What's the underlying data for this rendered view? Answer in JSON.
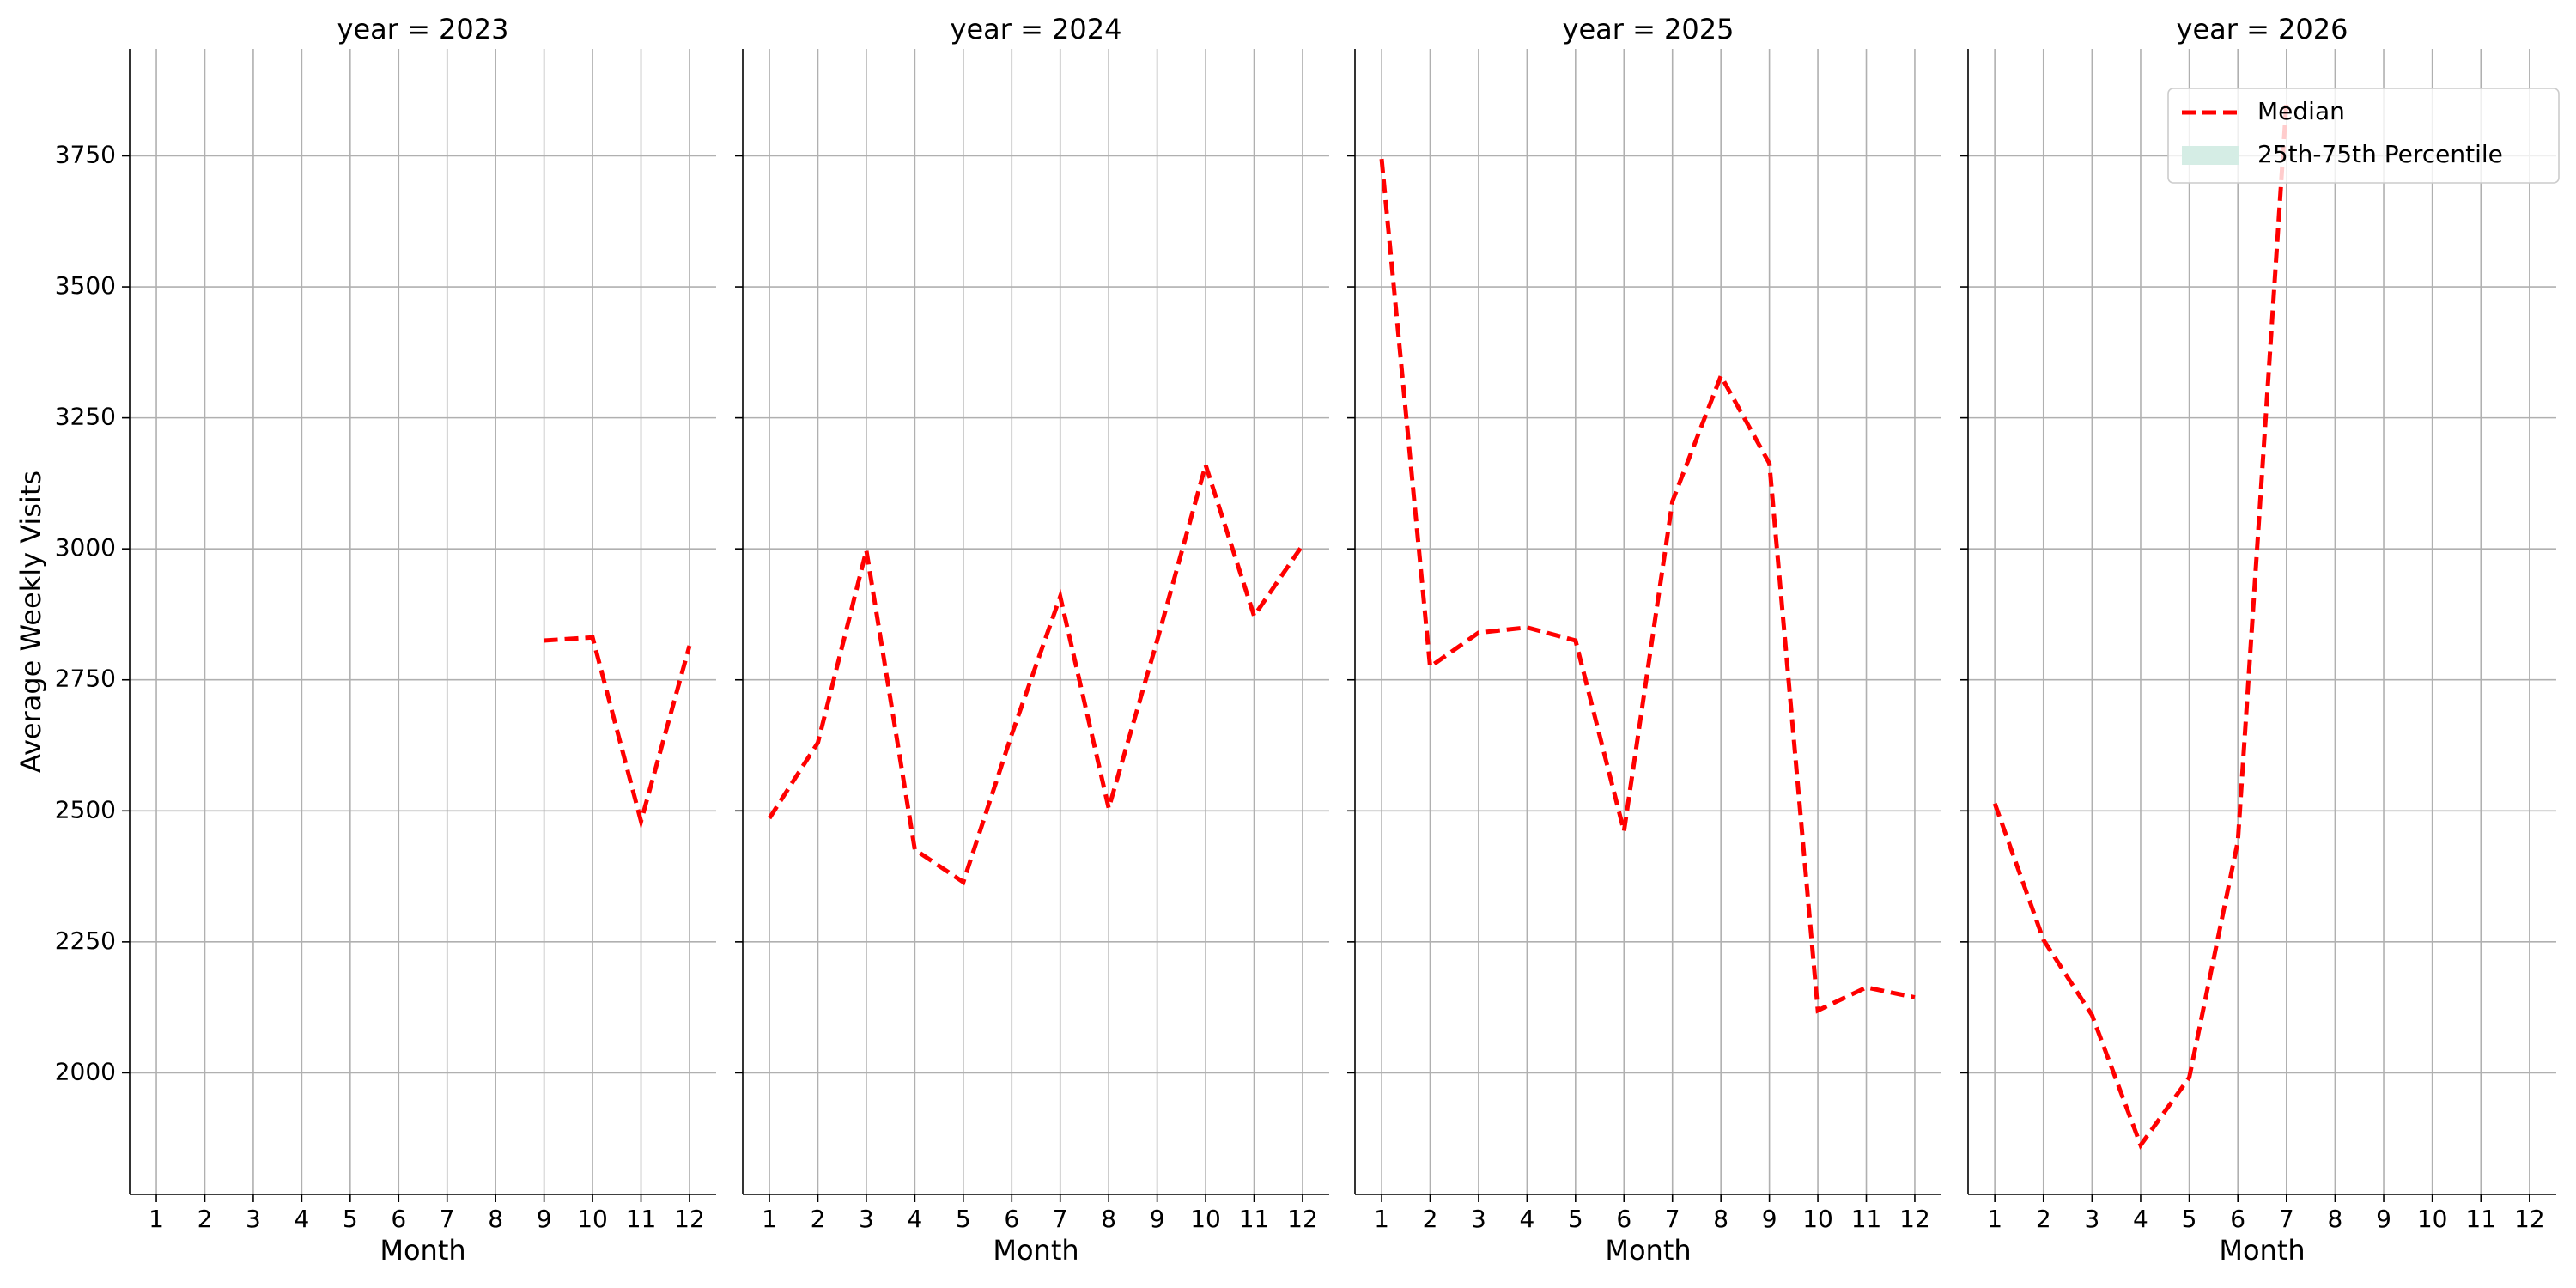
{
  "chart_data": [
    {
      "type": "line",
      "title": "year = 2023",
      "x_label": "Month",
      "y_label": "Average Weekly Visits",
      "x": [
        1,
        2,
        3,
        4,
        5,
        6,
        7,
        8,
        9,
        10,
        11,
        12
      ],
      "series": [
        {
          "name": "Median",
          "color": "#ff0000",
          "style": "dashed",
          "values": [
            null,
            null,
            null,
            null,
            null,
            null,
            null,
            null,
            2825,
            2831,
            2480,
            2815
          ]
        }
      ],
      "xlim": [
        0.45,
        12.55
      ],
      "xticks": [
        1,
        2,
        3,
        4,
        5,
        6,
        7,
        8,
        9,
        10,
        11,
        12
      ],
      "ylim": [
        1768,
        3954
      ],
      "yticks": [
        2000,
        2250,
        2500,
        2750,
        3000,
        3250,
        3500,
        3750
      ],
      "grid": true
    },
    {
      "type": "line",
      "title": "year = 2024",
      "x_label": "Month",
      "x": [
        1,
        2,
        3,
        4,
        5,
        6,
        7,
        8,
        9,
        10,
        11,
        12
      ],
      "series": [
        {
          "name": "Median",
          "color": "#ff0000",
          "style": "dashed",
          "values": [
            2486,
            2630,
            2997,
            2426,
            2364,
            2646,
            2909,
            2505,
            2825,
            3160,
            2872,
            3007
          ]
        }
      ],
      "xlim": [
        0.45,
        12.55
      ],
      "xticks": [
        1,
        2,
        3,
        4,
        5,
        6,
        7,
        8,
        9,
        10,
        11,
        12
      ],
      "ylim": [
        1768,
        3954
      ],
      "yticks": [
        2000,
        2250,
        2500,
        2750,
        3000,
        3250,
        3500,
        3750
      ],
      "grid": true
    },
    {
      "type": "line",
      "title": "year = 2025",
      "x_label": "Month",
      "x": [
        1,
        2,
        3,
        4,
        5,
        6,
        7,
        8,
        9,
        10,
        11,
        12
      ],
      "series": [
        {
          "name": "Median",
          "color": "#ff0000",
          "style": "dashed",
          "values": [
            3744,
            2775,
            2840,
            2850,
            2825,
            2461,
            3091,
            3330,
            3163,
            2119,
            2163,
            2144
          ]
        }
      ],
      "xlim": [
        0.45,
        12.55
      ],
      "xticks": [
        1,
        2,
        3,
        4,
        5,
        6,
        7,
        8,
        9,
        10,
        11,
        12
      ],
      "ylim": [
        1768,
        3954
      ],
      "yticks": [
        2000,
        2250,
        2500,
        2750,
        3000,
        3250,
        3500,
        3750
      ],
      "grid": true
    },
    {
      "type": "line",
      "title": "year = 2026",
      "x_label": "Month",
      "x": [
        1,
        2,
        3,
        4,
        5,
        6,
        7,
        8,
        9,
        10,
        11,
        12
      ],
      "series": [
        {
          "name": "Median",
          "color": "#ff0000",
          "style": "dashed",
          "values": [
            2514,
            2254,
            2110,
            1862,
            1991,
            2442,
            3853,
            null,
            null,
            null,
            null,
            null
          ]
        },
        {
          "name": "25th-75th Percentile",
          "color": "#d5ede5",
          "style": "band",
          "values": [
            null,
            null,
            null,
            null,
            null,
            null,
            null,
            null,
            null,
            null,
            null,
            null
          ]
        }
      ],
      "xlim": [
        0.45,
        12.55
      ],
      "xticks": [
        1,
        2,
        3,
        4,
        5,
        6,
        7,
        8,
        9,
        10,
        11,
        12
      ],
      "ylim": [
        1768,
        3954
      ],
      "yticks": [
        2000,
        2250,
        2500,
        2750,
        3000,
        3250,
        3500,
        3750
      ],
      "grid": true,
      "legend": "upper right"
    }
  ]
}
